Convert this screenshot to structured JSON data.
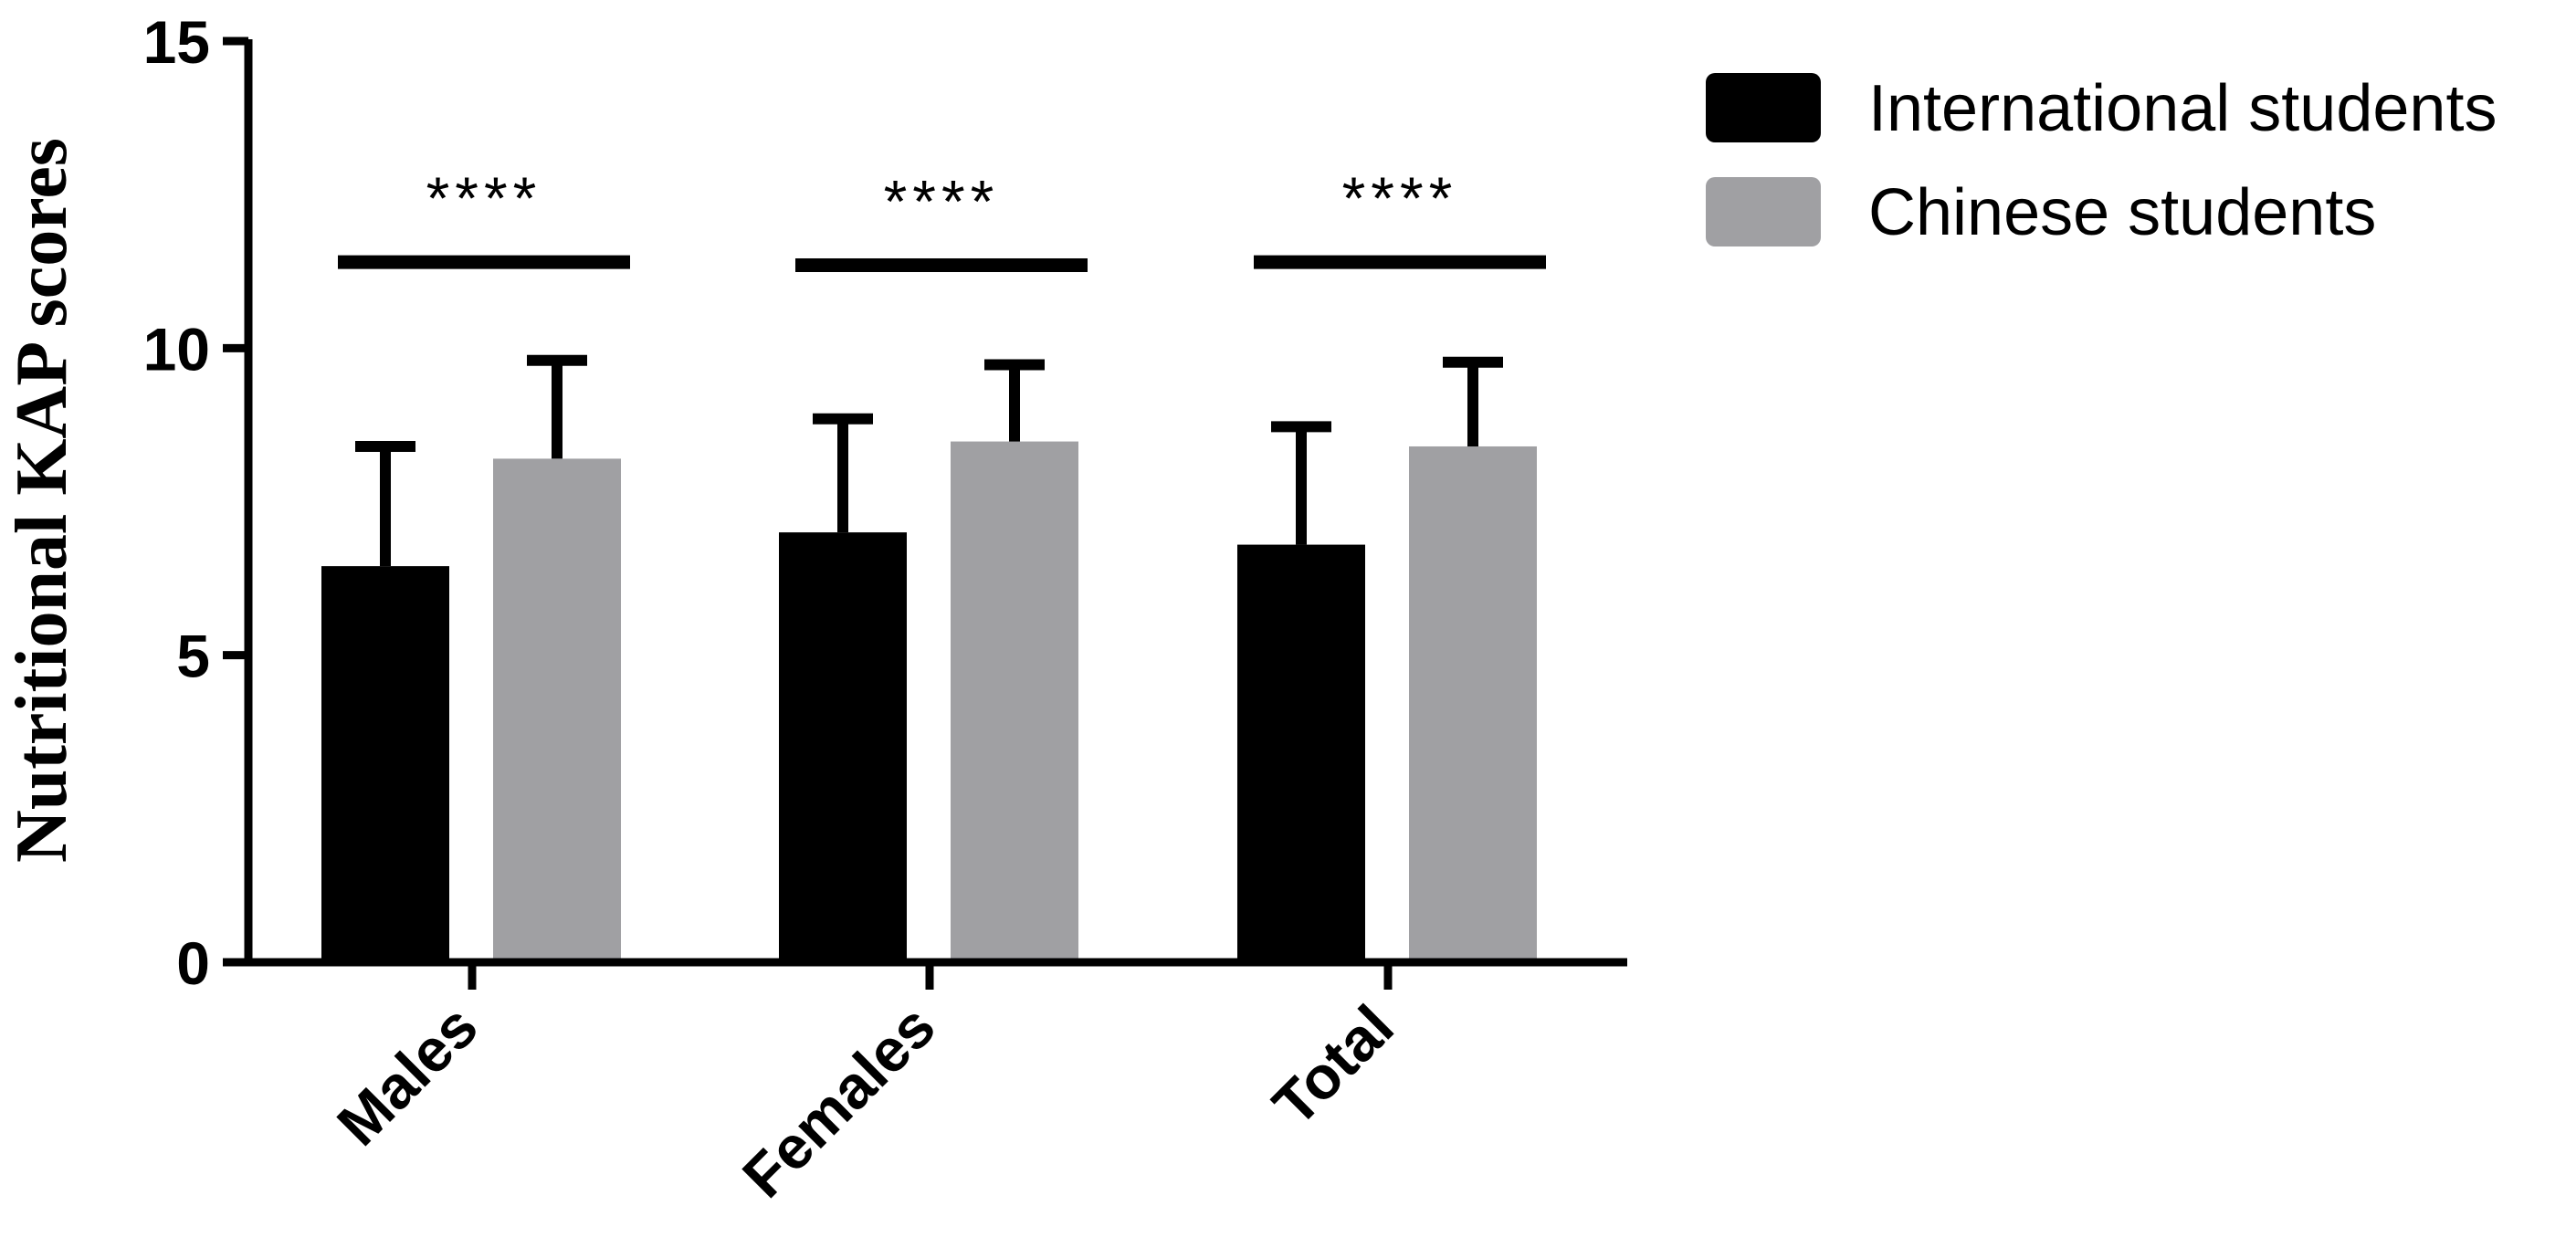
{
  "chart_data": {
    "type": "bar",
    "title": "",
    "xlabel": "",
    "ylabel": "Nutritional KAP scores",
    "ylim": [
      0,
      15
    ],
    "yticks": [
      0,
      5,
      10,
      15
    ],
    "grid": false,
    "legend_position": "top-right",
    "categories": [
      "Males",
      "Females",
      "Total"
    ],
    "series": [
      {
        "name": "International students",
        "color": "#000000",
        "values": [
          6.45,
          7.0,
          6.8
        ],
        "error": [
          1.95,
          1.85,
          1.92
        ]
      },
      {
        "name": "Chinese students",
        "color": "#a0a0a3",
        "values": [
          8.2,
          8.48,
          8.4
        ],
        "error": [
          1.6,
          1.25,
          1.37
        ]
      }
    ],
    "significance": [
      {
        "category": "Males",
        "label": "****",
        "bracket_y": 11.4
      },
      {
        "category": "Females",
        "label": "****",
        "bracket_y": 11.35
      },
      {
        "category": "Total",
        "label": "****",
        "bracket_y": 11.4
      }
    ]
  }
}
